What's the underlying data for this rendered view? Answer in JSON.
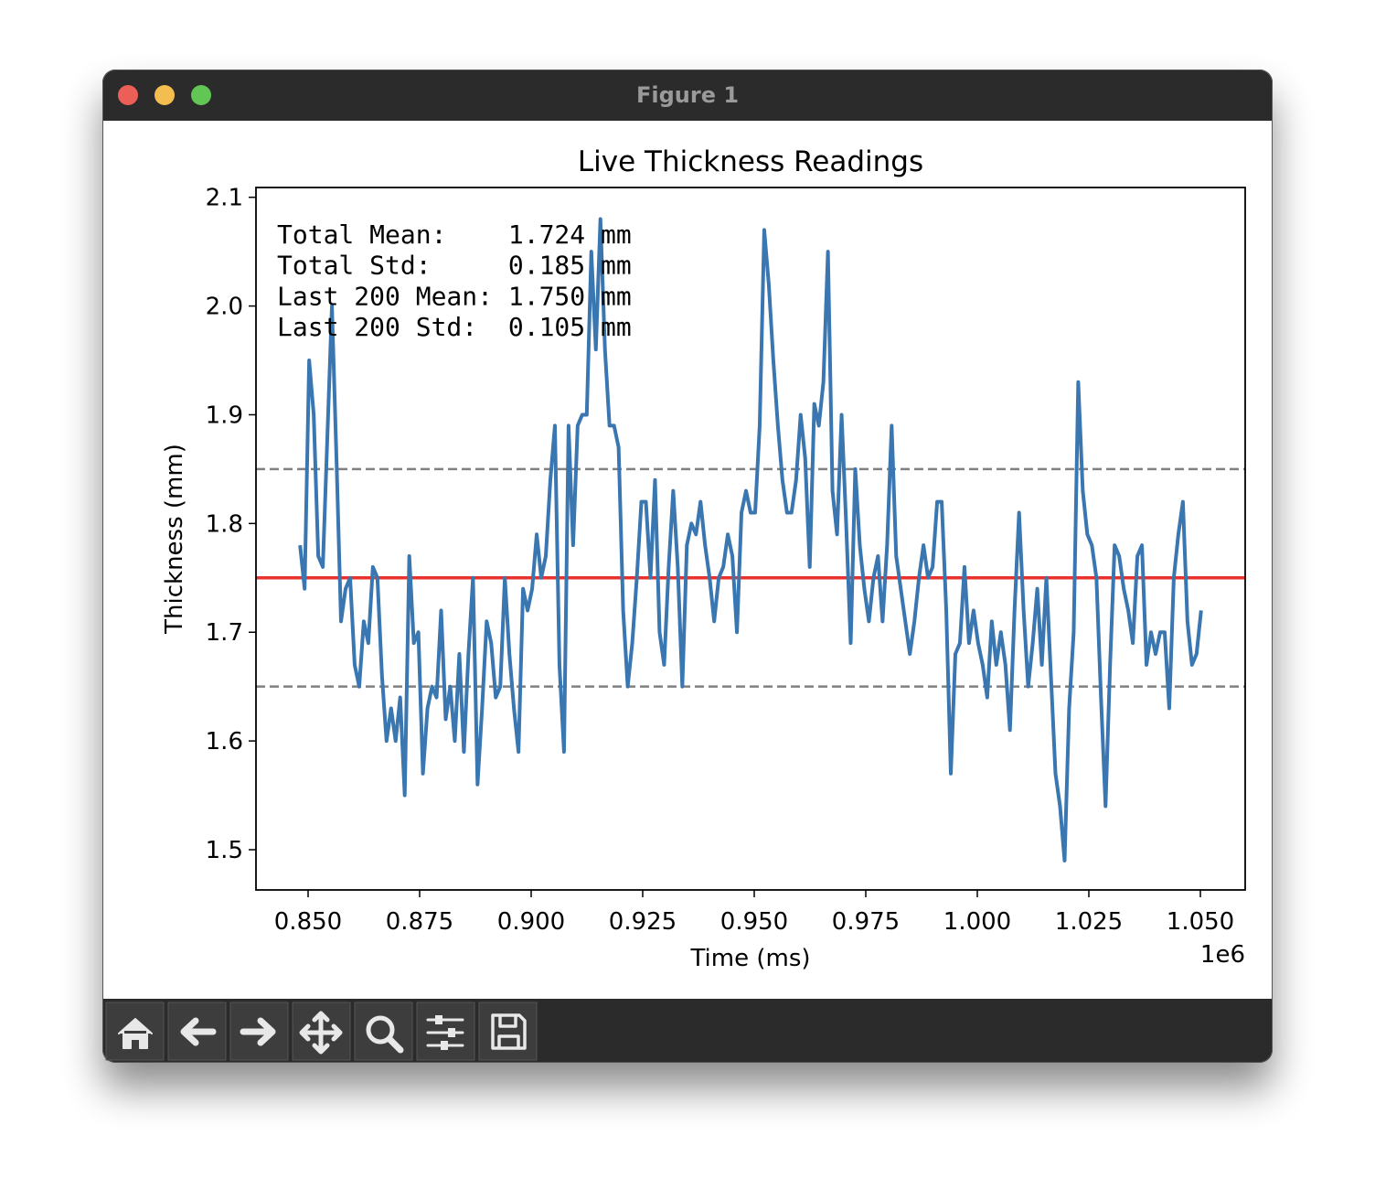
{
  "window_title": "Figure 1",
  "chart_data": {
    "type": "line",
    "title": "Live Thickness Readings",
    "x_label": "Time (ms)",
    "y_label": "Thickness (mm)",
    "x_offset_label": "1e6",
    "annotation_lines": [
      "Total Mean:    1.724 mm",
      "Total Std:     0.185 mm",
      "Last 200 Mean: 1.750 mm",
      "Last 200 Std:  0.105 mm"
    ],
    "xlim": [
      838320,
      1060040
    ],
    "ylim": [
      1.463,
      2.109
    ],
    "xticks": [
      {
        "value": 850000,
        "label": "0.850"
      },
      {
        "value": 875000,
        "label": "0.875"
      },
      {
        "value": 900000,
        "label": "0.900"
      },
      {
        "value": 925000,
        "label": "0.925"
      },
      {
        "value": 950000,
        "label": "0.950"
      },
      {
        "value": 975000,
        "label": "0.975"
      },
      {
        "value": 1000000,
        "label": "1.000"
      },
      {
        "value": 1025000,
        "label": "1.025"
      },
      {
        "value": 1050000,
        "label": "1.050"
      }
    ],
    "yticks": [
      1.5,
      1.6,
      1.7,
      1.8,
      1.9,
      {
        "value": 2,
        "label": "2.0"
      },
      2.1
    ],
    "hlines": [
      {
        "value": 1.75,
        "color": "#e8322b",
        "style": "solid"
      },
      {
        "value": 1.85,
        "color": "#808080",
        "style": "dashed"
      },
      {
        "value": 1.65,
        "color": "#808080",
        "style": "dashed"
      }
    ],
    "x": [
      848200,
      849220,
      850240,
      851260,
      852280,
      853300,
      854320,
      855340,
      856360,
      857380,
      858400,
      859420,
      860440,
      861460,
      862480,
      863500,
      864520,
      865540,
      866560,
      867580,
      868600,
      869620,
      870640,
      871660,
      872680,
      873700,
      874720,
      875740,
      876760,
      877780,
      878800,
      879820,
      880840,
      881860,
      882880,
      883900,
      884920,
      885940,
      886960,
      887980,
      889000,
      890020,
      891040,
      892060,
      893080,
      894100,
      895120,
      896140,
      897160,
      898180,
      899200,
      900220,
      901240,
      902260,
      903280,
      904300,
      905320,
      906340,
      907360,
      908380,
      909400,
      910420,
      911440,
      912460,
      913480,
      914500,
      915520,
      916540,
      917560,
      918580,
      919600,
      920620,
      921640,
      922660,
      923680,
      924700,
      925720,
      926740,
      927760,
      928780,
      929800,
      930820,
      931840,
      932860,
      933880,
      934900,
      935920,
      936940,
      937960,
      938980,
      940000,
      941020,
      942040,
      943060,
      944080,
      945100,
      946120,
      947140,
      948160,
      949180,
      950200,
      951220,
      952240,
      953260,
      954280,
      955300,
      956320,
      957340,
      958360,
      959380,
      960400,
      961420,
      962440,
      963460,
      964480,
      965500,
      966520,
      967540,
      968560,
      969580,
      970600,
      971620,
      972640,
      973660,
      974680,
      975700,
      976720,
      977740,
      978760,
      979780,
      980800,
      981820,
      982840,
      983860,
      984880,
      985900,
      986920,
      987940,
      988960,
      989980,
      991000,
      992020,
      993040,
      994060,
      995080,
      996100,
      997120,
      998140,
      999160,
      1000180,
      1001200,
      1002220,
      1003240,
      1004260,
      1005280,
      1006300,
      1007320,
      1008340,
      1009360,
      1010380,
      1011400,
      1012420,
      1013440,
      1014460,
      1015480,
      1016500,
      1017520,
      1018540,
      1019560,
      1020580,
      1021600,
      1022620,
      1023640,
      1024660,
      1025680,
      1026700,
      1027720,
      1028740,
      1029760,
      1030780,
      1031800,
      1032820,
      1033840,
      1034860,
      1035880,
      1036900,
      1037920,
      1038940,
      1039960,
      1040980,
      1042000,
      1043020,
      1044040,
      1045060,
      1046080,
      1047100,
      1048120,
      1049140,
      1050160
    ],
    "series": [
      {
        "name": "Thickness",
        "color": "#3a76b0",
        "values": [
          1.78,
          1.74,
          1.95,
          1.9,
          1.77,
          1.76,
          1.88,
          2.0,
          1.86,
          1.71,
          1.74,
          1.75,
          1.67,
          1.65,
          1.71,
          1.69,
          1.76,
          1.75,
          1.66,
          1.6,
          1.63,
          1.6,
          1.64,
          1.55,
          1.77,
          1.69,
          1.7,
          1.57,
          1.63,
          1.65,
          1.64,
          1.72,
          1.62,
          1.65,
          1.6,
          1.68,
          1.59,
          1.68,
          1.75,
          1.56,
          1.63,
          1.71,
          1.69,
          1.64,
          1.65,
          1.75,
          1.68,
          1.63,
          1.59,
          1.74,
          1.72,
          1.74,
          1.79,
          1.75,
          1.77,
          1.84,
          1.89,
          1.67,
          1.59,
          1.89,
          1.78,
          1.89,
          1.9,
          1.9,
          2.05,
          1.96,
          2.08,
          1.96,
          1.89,
          1.89,
          1.87,
          1.72,
          1.65,
          1.69,
          1.75,
          1.82,
          1.82,
          1.75,
          1.84,
          1.7,
          1.67,
          1.76,
          1.83,
          1.76,
          1.65,
          1.78,
          1.8,
          1.79,
          1.82,
          1.78,
          1.75,
          1.71,
          1.75,
          1.76,
          1.79,
          1.77,
          1.7,
          1.81,
          1.83,
          1.81,
          1.81,
          1.89,
          2.07,
          2.02,
          1.95,
          1.89,
          1.84,
          1.81,
          1.81,
          1.84,
          1.9,
          1.86,
          1.76,
          1.91,
          1.89,
          1.93,
          2.05,
          1.83,
          1.79,
          1.9,
          1.8,
          1.69,
          1.85,
          1.78,
          1.74,
          1.71,
          1.75,
          1.77,
          1.71,
          1.78,
          1.89,
          1.77,
          1.74,
          1.71,
          1.68,
          1.71,
          1.75,
          1.78,
          1.75,
          1.76,
          1.82,
          1.82,
          1.72,
          1.57,
          1.68,
          1.69,
          1.76,
          1.69,
          1.72,
          1.69,
          1.67,
          1.64,
          1.71,
          1.67,
          1.7,
          1.67,
          1.61,
          1.72,
          1.81,
          1.72,
          1.65,
          1.69,
          1.74,
          1.67,
          1.75,
          1.66,
          1.57,
          1.54,
          1.49,
          1.63,
          1.7,
          1.93,
          1.83,
          1.79,
          1.78,
          1.75,
          1.64,
          1.54,
          1.67,
          1.78,
          1.77,
          1.74,
          1.72,
          1.69,
          1.77,
          1.78,
          1.67,
          1.7,
          1.68,
          1.7,
          1.7,
          1.63,
          1.75,
          1.79,
          1.82,
          1.71,
          1.67,
          1.68,
          1.72
        ]
      }
    ]
  }
}
